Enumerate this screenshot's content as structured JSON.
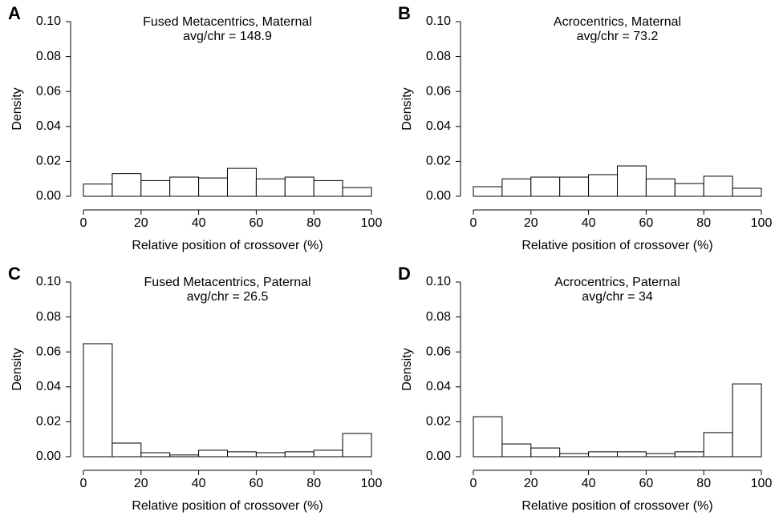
{
  "chart_data": [
    {
      "type": "histogram",
      "panel": "A",
      "title": "Fused Metacentrics, Maternal",
      "subtitle": "avg/chr = 148.9",
      "x_label": "Relative position of crossover (%)",
      "y_label": "Density",
      "bins": [
        0,
        10,
        20,
        30,
        40,
        50,
        60,
        70,
        80,
        90,
        100
      ],
      "values": [
        0.007,
        0.013,
        0.009,
        0.011,
        0.0105,
        0.016,
        0.01,
        0.011,
        0.009,
        0.005
      ],
      "xlim": [
        0,
        100
      ],
      "ylim": [
        0,
        0.1
      ],
      "xticks": [
        0,
        20,
        40,
        60,
        80,
        100
      ],
      "yticks": [
        {
          "value": 0,
          "label": "0.00"
        },
        {
          "value": 0.02,
          "label": "0.02"
        },
        {
          "value": 0.04,
          "label": "0.04"
        },
        {
          "value": 0.06,
          "label": "0.06"
        },
        {
          "value": 0.08,
          "label": "0.08"
        },
        {
          "value": 0.1,
          "label": "0.10"
        }
      ],
      "color": "#ffffff"
    },
    {
      "type": "histogram",
      "panel": "B",
      "title": "Acrocentrics, Maternal",
      "subtitle": "avg/chr = 73.2",
      "x_label": "Relative position of crossover (%)",
      "y_label": "Density",
      "bins": [
        0,
        10,
        20,
        30,
        40,
        50,
        60,
        70,
        80,
        90,
        100
      ],
      "values": [
        0.0055,
        0.01,
        0.011,
        0.011,
        0.0124,
        0.0174,
        0.01,
        0.0073,
        0.0115,
        0.0046
      ],
      "xlim": [
        0,
        100
      ],
      "ylim": [
        0,
        0.1
      ],
      "xticks": [
        0,
        20,
        40,
        60,
        80,
        100
      ],
      "yticks": [
        {
          "value": 0,
          "label": "0.00"
        },
        {
          "value": 0.02,
          "label": "0.02"
        },
        {
          "value": 0.04,
          "label": "0.04"
        },
        {
          "value": 0.06,
          "label": "0.06"
        },
        {
          "value": 0.08,
          "label": "0.08"
        },
        {
          "value": 0.1,
          "label": "0.10"
        }
      ],
      "color": "#ffffff"
    },
    {
      "type": "histogram",
      "panel": "C",
      "title": "Fused Metacentrics, Paternal",
      "subtitle": "avg/chr = 26.5",
      "x_label": "Relative position of crossover (%)",
      "y_label": "Density",
      "bins": [
        0,
        10,
        20,
        30,
        40,
        50,
        60,
        70,
        80,
        90,
        100
      ],
      "values": [
        0.0647,
        0.0078,
        0.0023,
        0.001,
        0.0037,
        0.0028,
        0.0023,
        0.0028,
        0.0037,
        0.0133
      ],
      "xlim": [
        0,
        100
      ],
      "ylim": [
        0,
        0.1
      ],
      "xticks": [
        0,
        20,
        40,
        60,
        80,
        100
      ],
      "yticks": [
        {
          "value": 0,
          "label": "0.00"
        },
        {
          "value": 0.02,
          "label": "0.02"
        },
        {
          "value": 0.04,
          "label": "0.04"
        },
        {
          "value": 0.06,
          "label": "0.06"
        },
        {
          "value": 0.08,
          "label": "0.08"
        },
        {
          "value": 0.1,
          "label": "0.10"
        }
      ],
      "color": "#ffffff"
    },
    {
      "type": "histogram",
      "panel": "D",
      "title": "Acrocentrics, Paternal",
      "subtitle": "avg/chr = 34",
      "x_label": "Relative position of crossover (%)",
      "y_label": "Density",
      "bins": [
        0,
        10,
        20,
        30,
        40,
        50,
        60,
        70,
        80,
        90,
        100
      ],
      "values": [
        0.0229,
        0.0073,
        0.005,
        0.0018,
        0.0028,
        0.0028,
        0.0018,
        0.0028,
        0.0138,
        0.0417
      ],
      "xlim": [
        0,
        100
      ],
      "ylim": [
        0,
        0.1
      ],
      "xticks": [
        0,
        20,
        40,
        60,
        80,
        100
      ],
      "yticks": [
        {
          "value": 0,
          "label": "0.00"
        },
        {
          "value": 0.02,
          "label": "0.02"
        },
        {
          "value": 0.04,
          "label": "0.04"
        },
        {
          "value": 0.06,
          "label": "0.06"
        },
        {
          "value": 0.08,
          "label": "0.08"
        },
        {
          "value": 0.1,
          "label": "0.10"
        }
      ],
      "color": "#ffffff"
    }
  ]
}
